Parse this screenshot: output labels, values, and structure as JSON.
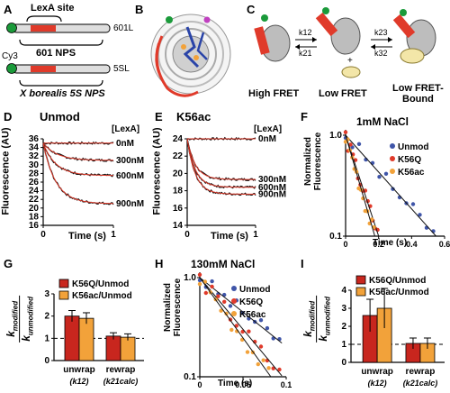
{
  "panels": {
    "A": {
      "label": "A",
      "lexa_site": "LexA site",
      "construct_601": "601L",
      "nps_601": "601 NPS",
      "cy3": "Cy3",
      "construct_5s": "5SL",
      "nps_5s": "X borealis 5S NPS"
    },
    "B": {
      "label": "B"
    },
    "C": {
      "label": "C",
      "k12": "k12",
      "k21": "k21",
      "k23": "k23",
      "k32": "k32",
      "state1": "High FRET",
      "state2": "Low FRET",
      "state3": "Low FRET-\nBound"
    },
    "D": {
      "label": "D",
      "title": "Unmod",
      "legend_title": "[LexA]",
      "curve_labels": [
        "0nM",
        "300nM",
        "600nM",
        "900nM"
      ],
      "ylabel": "Fluorescence (AU)",
      "xlabel": "Time (s)",
      "yticks": [
        "36",
        "34",
        "32",
        "30",
        "28",
        "26",
        "24",
        "22",
        "20",
        "18",
        "16"
      ],
      "xticks": [
        "0",
        "1"
      ]
    },
    "E": {
      "label": "E",
      "title": "K56ac",
      "legend_title": "[LexA]",
      "curve_labels": [
        "0nM",
        "300nM",
        "600nM",
        "900nM"
      ],
      "ylabel": "Fluorescence (AU)",
      "xlabel": "Time (s)",
      "yticks": [
        "24",
        "22",
        "20",
        "18",
        "16",
        "14"
      ],
      "xticks": [
        "0",
        "1"
      ]
    },
    "F": {
      "label": "F",
      "title": "1mM NaCl",
      "legend": [
        "Unmod",
        "K56Q",
        "K56ac"
      ],
      "ylabel": "Normalized\nFluorescence",
      "xlabel": "Time (s)",
      "yticks": [
        "1.0",
        "0.1"
      ],
      "xticks": [
        "0",
        "0.2",
        "0.4",
        "0.6"
      ]
    },
    "G": {
      "label": "G",
      "legend": [
        "K56Q/Unmod",
        "K56ac/Unmod"
      ],
      "ylabel_num": "k",
      "ylabel_num_sub": "modified",
      "ylabel_den": "k",
      "ylabel_den_sub": "unmodified",
      "yticks": [
        "3",
        "2",
        "1",
        "0"
      ],
      "groups": [
        "unwrap",
        "rewrap"
      ],
      "group_params": [
        "(k12)",
        "(k21calc)"
      ]
    },
    "H": {
      "label": "H",
      "title": "130mM NaCl",
      "legend": [
        "Unmod",
        "K56Q",
        "K56ac"
      ],
      "ylabel": "Normalized\nFluorescence",
      "xlabel": "Time (s)",
      "yticks": [
        "1.0",
        "0.1"
      ],
      "xticks": [
        "0",
        "0.05",
        "0.1"
      ]
    },
    "I": {
      "label": "I",
      "legend": [
        "K56Q/Unmod",
        "K56ac/Unmod"
      ],
      "ylabel_num": "k",
      "ylabel_num_sub": "modified",
      "ylabel_den": "k",
      "ylabel_den_sub": "unmodified",
      "yticks": [
        "4",
        "3",
        "2",
        "1",
        "0"
      ],
      "groups": [
        "unwrap",
        "rewrap"
      ],
      "group_params": [
        "(k12)",
        "(k21calc)"
      ]
    }
  },
  "colors": {
    "blue": "#3f55a8",
    "red": "#e03a2a",
    "orange": "#f2a23a",
    "darkred": "#c8261e"
  },
  "chart_data": [
    {
      "panel": "D",
      "type": "line",
      "title": "Unmod",
      "xlabel": "Time (s)",
      "ylabel": "Fluorescence (AU)",
      "xlim": [
        0,
        1
      ],
      "ylim": [
        16,
        36
      ],
      "series": [
        {
          "name": "0nM",
          "start": 35,
          "end": 35,
          "tau": 0.2
        },
        {
          "name": "300nM",
          "start": 35,
          "end": 31,
          "tau": 0.2
        },
        {
          "name": "600nM",
          "start": 35,
          "end": 27.5,
          "tau": 0.18
        },
        {
          "name": "900nM",
          "start": 35,
          "end": 21,
          "tau": 0.18
        }
      ]
    },
    {
      "panel": "E",
      "type": "line",
      "title": "K56ac",
      "xlabel": "Time (s)",
      "ylabel": "Fluorescence (AU)",
      "xlim": [
        0,
        1
      ],
      "ylim": [
        14,
        24
      ],
      "series": [
        {
          "name": "0nM",
          "start": 24,
          "end": 24,
          "tau": 0.15
        },
        {
          "name": "300nM",
          "start": 24,
          "end": 19.3,
          "tau": 0.12
        },
        {
          "name": "600nM",
          "start": 24,
          "end": 18.4,
          "tau": 0.12
        },
        {
          "name": "900nM",
          "start": 24,
          "end": 17.6,
          "tau": 0.12
        }
      ]
    },
    {
      "panel": "F",
      "type": "scatter",
      "title": "1mM NaCl",
      "log_y": true,
      "xlim": [
        0,
        0.6
      ],
      "ylim": [
        0.1,
        1.0
      ],
      "series": [
        {
          "name": "Unmod",
          "slope": -4.2
        },
        {
          "name": "K56Q",
          "slope": -11.5
        },
        {
          "name": "K56ac",
          "slope": -13.0
        }
      ]
    },
    {
      "panel": "G",
      "type": "bar",
      "ylim": [
        0,
        3
      ],
      "categories": [
        "unwrap (k12)",
        "rewrap (k21calc)"
      ],
      "series": [
        {
          "name": "K56Q/Unmod",
          "values": [
            2.0,
            1.1
          ],
          "errors": [
            0.25,
            0.15
          ]
        },
        {
          "name": "K56ac/Unmod",
          "values": [
            1.9,
            1.05
          ],
          "errors": [
            0.25,
            0.15
          ]
        }
      ]
    },
    {
      "panel": "H",
      "type": "scatter",
      "title": "130mM NaCl",
      "log_y": true,
      "xlim": [
        0,
        0.1
      ],
      "ylim": [
        0.1,
        1.0
      ],
      "series": [
        {
          "name": "Unmod",
          "slope": -16
        },
        {
          "name": "K56Q",
          "slope": -24
        },
        {
          "name": "K56ac",
          "slope": -28
        }
      ]
    },
    {
      "panel": "I",
      "type": "bar",
      "ylim": [
        0,
        4
      ],
      "categories": [
        "unwrap (k12)",
        "rewrap (k21calc)"
      ],
      "series": [
        {
          "name": "K56Q/Unmod",
          "values": [
            2.6,
            1.05
          ],
          "errors": [
            0.9,
            0.3
          ]
        },
        {
          "name": "K56ac/Unmod",
          "values": [
            3.0,
            1.05
          ],
          "errors": [
            1.1,
            0.3
          ]
        }
      ]
    }
  ]
}
